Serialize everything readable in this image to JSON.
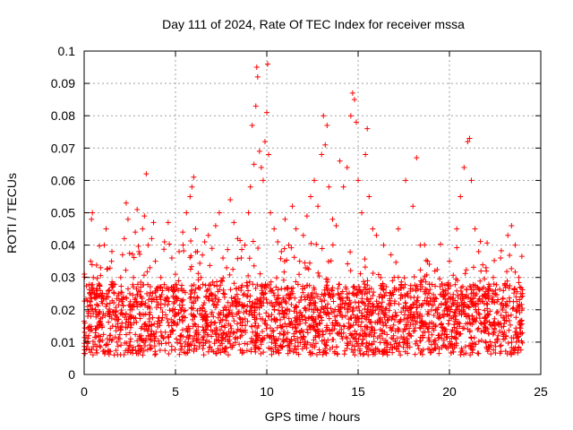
{
  "chart_data": {
    "type": "scatter",
    "title": "Day 111 of 2024, Rate Of TEC Index for receiver mssa",
    "xlabel": "GPS time / hours",
    "ylabel": "ROTI / TECUs",
    "xlim": [
      0,
      25
    ],
    "ylim": [
      0,
      0.1
    ],
    "xticks": [
      0,
      5,
      10,
      15,
      20,
      25
    ],
    "xtick_labels": [
      "0",
      "5",
      "10",
      "15",
      "20",
      "25"
    ],
    "yticks": [
      0,
      0.01,
      0.02,
      0.03,
      0.04,
      0.05,
      0.06,
      0.07,
      0.08,
      0.09,
      0.1
    ],
    "ytick_labels": [
      "0",
      "0.01",
      "0.02",
      "0.03",
      "0.04",
      "0.05",
      "0.06",
      "0.07",
      "0.08",
      "0.09",
      "0.1"
    ],
    "grid": true,
    "marker": "+",
    "color": "#ff0000",
    "series": [
      {
        "name": "ROTI",
        "description_band": "dense band between 0.005 and 0.03 across 0-24 h",
        "points": [
          [
            0.1,
            0.012
          ],
          [
            0.2,
            0.018
          ],
          [
            0.3,
            0.025
          ],
          [
            0.35,
            0.035
          ],
          [
            0.4,
            0.048
          ],
          [
            0.45,
            0.05
          ],
          [
            0.5,
            0.03
          ],
          [
            0.6,
            0.02
          ],
          [
            0.7,
            0.015
          ],
          [
            0.8,
            0.028
          ],
          [
            0.9,
            0.033
          ],
          [
            1.0,
            0.022
          ],
          [
            1.1,
            0.04
          ],
          [
            1.2,
            0.045
          ],
          [
            1.3,
            0.019
          ],
          [
            1.4,
            0.012
          ],
          [
            1.5,
            0.035
          ],
          [
            1.6,
            0.028
          ],
          [
            1.7,
            0.017
          ],
          [
            1.8,
            0.01
          ],
          [
            2.0,
            0.03
          ],
          [
            2.1,
            0.037
          ],
          [
            2.2,
            0.042
          ],
          [
            2.3,
            0.053
          ],
          [
            2.4,
            0.048
          ],
          [
            2.5,
            0.025
          ],
          [
            2.6,
            0.018
          ],
          [
            2.7,
            0.03
          ],
          [
            2.8,
            0.044
          ],
          [
            2.9,
            0.051
          ],
          [
            3.0,
            0.038
          ],
          [
            3.1,
            0.027
          ],
          [
            3.2,
            0.045
          ],
          [
            3.3,
            0.049
          ],
          [
            3.4,
            0.062
          ],
          [
            3.5,
            0.04
          ],
          [
            3.6,
            0.033
          ],
          [
            3.7,
            0.042
          ],
          [
            3.8,
            0.047
          ],
          [
            3.9,
            0.035
          ],
          [
            4.0,
            0.026
          ],
          [
            4.2,
            0.03
          ],
          [
            4.4,
            0.041
          ],
          [
            4.6,
            0.047
          ],
          [
            4.8,
            0.036
          ],
          [
            5.0,
            0.031
          ],
          [
            5.2,
            0.038
          ],
          [
            5.4,
            0.044
          ],
          [
            5.6,
            0.05
          ],
          [
            5.8,
            0.055
          ],
          [
            5.9,
            0.058
          ],
          [
            6.0,
            0.061
          ],
          [
            6.1,
            0.045
          ],
          [
            6.2,
            0.038
          ],
          [
            6.4,
            0.03
          ],
          [
            6.6,
            0.041
          ],
          [
            6.8,
            0.043
          ],
          [
            7.0,
            0.039
          ],
          [
            7.2,
            0.046
          ],
          [
            7.4,
            0.05
          ],
          [
            7.6,
            0.036
          ],
          [
            7.8,
            0.033
          ],
          [
            8.0,
            0.054
          ],
          [
            8.2,
            0.047
          ],
          [
            8.4,
            0.042
          ],
          [
            8.6,
            0.036
          ],
          [
            8.8,
            0.04
          ],
          [
            9.0,
            0.05
          ],
          [
            9.1,
            0.058
          ],
          [
            9.2,
            0.077
          ],
          [
            9.3,
            0.065
          ],
          [
            9.4,
            0.083
          ],
          [
            9.45,
            0.095
          ],
          [
            9.5,
            0.092
          ],
          [
            9.6,
            0.069
          ],
          [
            9.7,
            0.064
          ],
          [
            9.8,
            0.06
          ],
          [
            9.9,
            0.072
          ],
          [
            10.0,
            0.081
          ],
          [
            10.05,
            0.096
          ],
          [
            10.1,
            0.068
          ],
          [
            10.2,
            0.05
          ],
          [
            10.4,
            0.045
          ],
          [
            10.6,
            0.041
          ],
          [
            10.8,
            0.038
          ],
          [
            11.0,
            0.048
          ],
          [
            11.2,
            0.04
          ],
          [
            11.4,
            0.052
          ],
          [
            11.6,
            0.045
          ],
          [
            11.8,
            0.035
          ],
          [
            12.0,
            0.043
          ],
          [
            12.2,
            0.049
          ],
          [
            12.4,
            0.055
          ],
          [
            12.6,
            0.06
          ],
          [
            12.8,
            0.052
          ],
          [
            13.0,
            0.068
          ],
          [
            13.1,
            0.08
          ],
          [
            13.2,
            0.071
          ],
          [
            13.3,
            0.077
          ],
          [
            13.4,
            0.058
          ],
          [
            13.6,
            0.048
          ],
          [
            13.8,
            0.046
          ],
          [
            14.0,
            0.066
          ],
          [
            14.2,
            0.058
          ],
          [
            14.4,
            0.064
          ],
          [
            14.6,
            0.08
          ],
          [
            14.7,
            0.087
          ],
          [
            14.8,
            0.085
          ],
          [
            14.9,
            0.078
          ],
          [
            15.0,
            0.06
          ],
          [
            15.2,
            0.05
          ],
          [
            15.4,
            0.068
          ],
          [
            15.5,
            0.076
          ],
          [
            15.6,
            0.055
          ],
          [
            15.8,
            0.045
          ],
          [
            16.0,
            0.043
          ],
          [
            16.4,
            0.04
          ],
          [
            16.8,
            0.037
          ],
          [
            17.2,
            0.045
          ],
          [
            17.6,
            0.06
          ],
          [
            18.0,
            0.052
          ],
          [
            18.2,
            0.067
          ],
          [
            18.4,
            0.04
          ],
          [
            18.8,
            0.035
          ],
          [
            19.2,
            0.032
          ],
          [
            19.6,
            0.028
          ],
          [
            20.0,
            0.035
          ],
          [
            20.4,
            0.045
          ],
          [
            20.6,
            0.055
          ],
          [
            20.8,
            0.064
          ],
          [
            21.0,
            0.072
          ],
          [
            21.1,
            0.073
          ],
          [
            21.2,
            0.06
          ],
          [
            21.4,
            0.045
          ],
          [
            21.6,
            0.038
          ],
          [
            22.0,
            0.033
          ],
          [
            22.4,
            0.03
          ],
          [
            22.8,
            0.036
          ],
          [
            23.2,
            0.043
          ],
          [
            23.4,
            0.046
          ],
          [
            23.6,
            0.04
          ],
          [
            23.8,
            0.03
          ],
          [
            24.0,
            0.025
          ]
        ]
      }
    ]
  }
}
